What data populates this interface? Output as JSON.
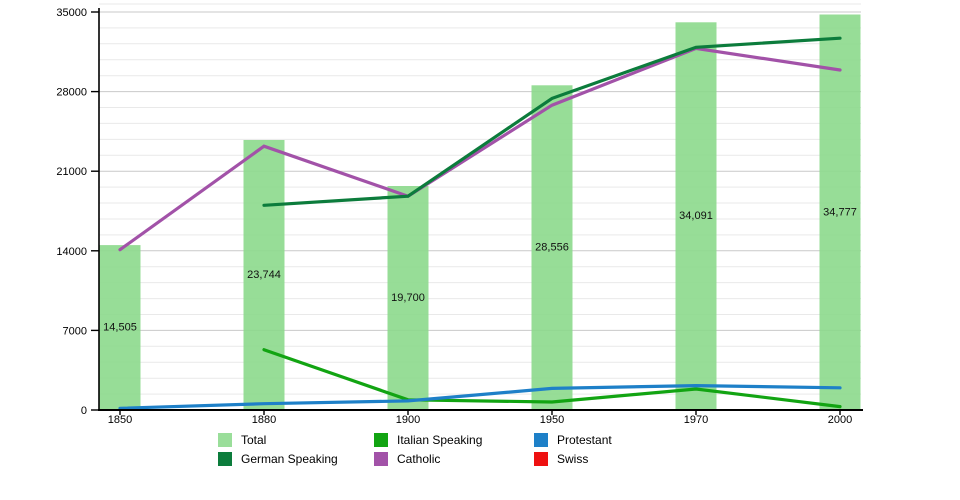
{
  "chart_data": {
    "type": "bar+line",
    "title": "",
    "xlabel": "",
    "ylabel": "",
    "categories": [
      "1850",
      "1880",
      "1900",
      "1950",
      "1970",
      "2000"
    ],
    "y_ticks": [
      0,
      7000,
      14000,
      21000,
      28000,
      35000
    ],
    "ylim": [
      0,
      35000
    ],
    "minor_gridline_step": 1400,
    "grid": "on",
    "legend_position": "bottom",
    "bar_series": {
      "name": "Total",
      "color": "#9ade9a",
      "values": [
        14505,
        23744,
        19700,
        28556,
        34091,
        34777
      ],
      "value_labels": [
        "14,505",
        "23,744",
        "19,700",
        "28,556",
        "34,091",
        "34,777"
      ]
    },
    "line_series": [
      {
        "name": "Catholic",
        "color": "#a252a8",
        "values": [
          14100,
          23200,
          18800,
          26800,
          31800,
          29900
        ]
      },
      {
        "name": "German Speaking",
        "color": "#0c7c3c",
        "values": [
          null,
          18000,
          18800,
          27400,
          31900,
          32700
        ]
      },
      {
        "name": "Italian Speaking",
        "color": "#12a412",
        "values": [
          null,
          5300,
          900,
          700,
          1850,
          300
        ]
      },
      {
        "name": "Protestant",
        "color": "#1e80c8",
        "values": [
          150,
          550,
          800,
          1900,
          2150,
          1950
        ]
      },
      {
        "name": "Swiss",
        "color": "#ee1111",
        "values": [
          null,
          null,
          null,
          null,
          null,
          null
        ]
      }
    ]
  },
  "legend": {
    "items": [
      {
        "label": "Total",
        "color": "#9ade9a"
      },
      {
        "label": "German Speaking",
        "color": "#0c7c3c"
      },
      {
        "label": "Italian Speaking",
        "color": "#12a412"
      },
      {
        "label": "Catholic",
        "color": "#a252a8"
      },
      {
        "label": "Protestant",
        "color": "#1e80c8"
      },
      {
        "label": "Swiss",
        "color": "#ee1111"
      }
    ]
  },
  "colors": {
    "major_gridline": "#c9c9c9",
    "minor_gridline": "#e9e9e9",
    "axis": "#000000"
  }
}
